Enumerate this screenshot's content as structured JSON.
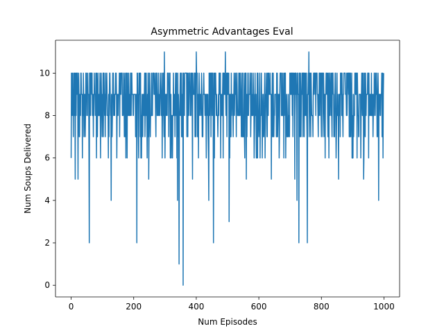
{
  "chart_data": {
    "type": "line",
    "title": "Asymmetric Advantages Eval",
    "xlabel": "Num Episodes",
    "ylabel": "Num Soups Delivered",
    "xlim": [
      -50,
      1050
    ],
    "ylim": [
      -0.55,
      11.55
    ],
    "xticks": [
      0,
      200,
      400,
      600,
      800,
      1000
    ],
    "yticks": [
      0,
      2,
      4,
      6,
      8,
      10
    ],
    "grid": false,
    "legend": "none",
    "line_color": "#1f77b4",
    "n_episodes": 1000,
    "baseline": 9,
    "series": [
      {
        "values_sample": [
          6,
          10,
          8,
          9,
          10,
          8,
          9,
          7,
          10,
          9,
          8,
          10,
          9,
          5,
          10,
          9,
          8,
          10,
          9,
          10
        ],
        "notable_points": [
          {
            "x": 0,
            "y": 6
          },
          {
            "x": 22,
            "y": 5
          },
          {
            "x": 58,
            "y": 2
          },
          {
            "x": 128,
            "y": 4
          },
          {
            "x": 210,
            "y": 2
          },
          {
            "x": 248,
            "y": 5
          },
          {
            "x": 298,
            "y": 11
          },
          {
            "x": 340,
            "y": 4
          },
          {
            "x": 345,
            "y": 1
          },
          {
            "x": 358,
            "y": 0
          },
          {
            "x": 388,
            "y": 5
          },
          {
            "x": 400,
            "y": 11
          },
          {
            "x": 440,
            "y": 4
          },
          {
            "x": 455,
            "y": 2
          },
          {
            "x": 493,
            "y": 11
          },
          {
            "x": 505,
            "y": 3
          },
          {
            "x": 560,
            "y": 5
          },
          {
            "x": 640,
            "y": 5
          },
          {
            "x": 715,
            "y": 5
          },
          {
            "x": 722,
            "y": 4
          },
          {
            "x": 728,
            "y": 2
          },
          {
            "x": 755,
            "y": 2
          },
          {
            "x": 760,
            "y": 11
          },
          {
            "x": 855,
            "y": 5
          },
          {
            "x": 935,
            "y": 5
          },
          {
            "x": 983,
            "y": 4
          }
        ]
      }
    ]
  }
}
